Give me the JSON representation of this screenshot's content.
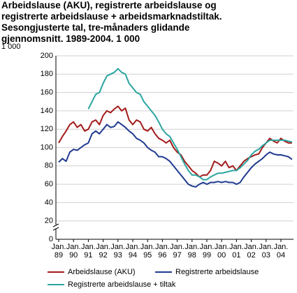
{
  "chart_data": {
    "type": "line",
    "title": "Arbeidslause (AKU), registrerte arbeidslause og registrerte arbeidslause + arbeidsmarknadstiltak. Sesongjusterte tal, tre-månaders glidande gjennomsnitt. 1989-2004. 1 000",
    "y_unit": "1 000",
    "x": [
      1989,
      1989.25,
      1989.5,
      1989.75,
      1990,
      1990.25,
      1990.5,
      1990.75,
      1991,
      1991.25,
      1991.5,
      1991.75,
      1992,
      1992.25,
      1992.5,
      1992.75,
      1993,
      1993.25,
      1993.5,
      1993.75,
      1994,
      1994.25,
      1994.5,
      1994.75,
      1995,
      1995.25,
      1995.5,
      1995.75,
      1996,
      1996.25,
      1996.5,
      1996.75,
      1997,
      1997.25,
      1997.5,
      1997.75,
      1998,
      1998.25,
      1998.5,
      1998.75,
      1999,
      1999.25,
      1999.5,
      1999.75,
      2000,
      2000.25,
      2000.5,
      2000.75,
      2001,
      2001.25,
      2001.5,
      2001.75,
      2002,
      2002.25,
      2002.5,
      2002.75,
      2003,
      2003.25,
      2003.5,
      2003.75,
      2004,
      2004.25,
      2004.5,
      2004.75
    ],
    "series": [
      {
        "name": "Arbeidslause (AKU)",
        "color": "#a31a1a",
        "values": [
          105,
          112,
          118,
          125,
          128,
          122,
          125,
          118,
          120,
          128,
          130,
          125,
          135,
          140,
          138,
          142,
          145,
          140,
          143,
          130,
          125,
          130,
          128,
          120,
          118,
          122,
          115,
          110,
          108,
          105,
          108,
          100,
          95,
          92,
          85,
          80,
          75,
          72,
          68,
          70,
          70,
          75,
          85,
          83,
          80,
          85,
          78,
          80,
          75,
          80,
          85,
          88,
          90,
          92,
          93,
          100,
          105,
          110,
          107,
          105,
          110,
          107,
          105,
          105
        ]
      },
      {
        "name": "Registrerte arbeidslause",
        "color": "#1f3a8f",
        "values": [
          84,
          88,
          85,
          95,
          98,
          97,
          100,
          103,
          105,
          115,
          118,
          115,
          120,
          125,
          122,
          123,
          128,
          125,
          122,
          118,
          115,
          110,
          108,
          105,
          100,
          97,
          95,
          90,
          90,
          88,
          85,
          80,
          75,
          70,
          65,
          60,
          58,
          57,
          60,
          62,
          60,
          62,
          62,
          63,
          62,
          63,
          62,
          62,
          60,
          62,
          68,
          73,
          78,
          82,
          85,
          88,
          92,
          95,
          93,
          92,
          92,
          91,
          90,
          87
        ]
      },
      {
        "name": "Registrerte arbeidslause + tiltak",
        "color": "#2ba5a0",
        "values": [
          null,
          null,
          null,
          null,
          null,
          null,
          null,
          null,
          142,
          150,
          158,
          160,
          170,
          178,
          180,
          182,
          186,
          182,
          180,
          170,
          165,
          160,
          158,
          150,
          145,
          140,
          135,
          128,
          120,
          115,
          112,
          105,
          98,
          90,
          82,
          75,
          70,
          70,
          68,
          65,
          65,
          68,
          70,
          72,
          72,
          73,
          74,
          75,
          75,
          78,
          82,
          86,
          92,
          96,
          98,
          102,
          105,
          108,
          108,
          108,
          108,
          108,
          107,
          106
        ]
      }
    ],
    "xlim": [
      1989,
      2004.85
    ],
    "xticks": [
      {
        "value": 1989,
        "label": "Jan. 89"
      },
      {
        "value": 1990,
        "label": "Jan. 90"
      },
      {
        "value": 1991,
        "label": "Jan. 91"
      },
      {
        "value": 1992,
        "label": "Jan. 92"
      },
      {
        "value": 1993,
        "label": "Jan. 93"
      },
      {
        "value": 1994,
        "label": "Jan. 94"
      },
      {
        "value": 1995,
        "label": "Jan. 95"
      },
      {
        "value": 1996,
        "label": "Jan. 96"
      },
      {
        "value": 1997,
        "label": "Jan. 97"
      },
      {
        "value": 1998,
        "label": "Jan. 98"
      },
      {
        "value": 1999,
        "label": "Jan. 99"
      },
      {
        "value": 2000,
        "label": "Jan. 00"
      },
      {
        "value": 2001,
        "label": "Jan. 01"
      },
      {
        "value": 2002,
        "label": "Jan. 02"
      },
      {
        "value": 2003,
        "label": "Jan. 03"
      },
      {
        "value": 2004,
        "label": "Jan. 04"
      }
    ],
    "ylim": [
      0,
      200
    ],
    "yticks": [
      0,
      20,
      40,
      60,
      80,
      100,
      120,
      140,
      160,
      180,
      200
    ],
    "grid": true
  }
}
